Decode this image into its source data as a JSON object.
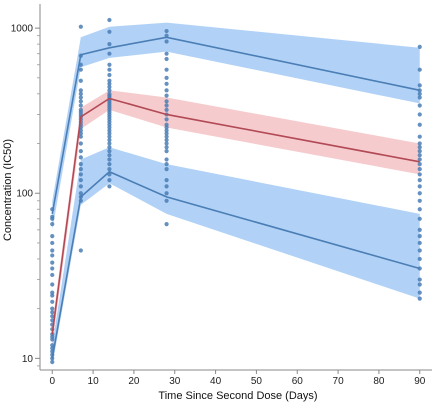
{
  "chart_data": {
    "type": "line",
    "title": "",
    "xlabel": "Time Since Second Dose (Days)",
    "ylabel": "Concentration (IC50)",
    "x_scale": "linear",
    "y_scale": "log",
    "xlim": [
      -3,
      93
    ],
    "ylim": [
      8.5,
      1400
    ],
    "x_ticks": [
      0,
      10,
      20,
      30,
      40,
      50,
      60,
      70,
      80,
      90
    ],
    "y_ticks": [
      10,
      100,
      1000
    ],
    "grid": false,
    "legend": "none",
    "series": [
      {
        "style": "upper",
        "color": "#4a7eb5",
        "band_color": "#a9cdf5",
        "x": [
          0,
          7,
          14,
          28,
          90
        ],
        "median": [
          75,
          690,
          760,
          880,
          420
        ],
        "band_lower": [
          60,
          580,
          660,
          720,
          350
        ],
        "band_upper": [
          90,
          880,
          1020,
          1080,
          760
        ]
      },
      {
        "style": "middle",
        "color": "#b24a55",
        "band_color": "#f4c2c5",
        "x": [
          0,
          7,
          14,
          28,
          90
        ],
        "median": [
          14,
          290,
          375,
          300,
          155
        ],
        "band_lower": [
          12,
          245,
          320,
          250,
          130
        ],
        "band_upper": [
          16,
          330,
          420,
          380,
          200
        ]
      },
      {
        "style": "lower",
        "color": "#4a7eb5",
        "band_color": "#a9cdf5",
        "x": [
          0,
          7,
          14,
          28,
          90
        ],
        "median": [
          10,
          95,
          135,
          95,
          35
        ],
        "band_lower": [
          9,
          85,
          115,
          75,
          23
        ],
        "band_upper": [
          12,
          160,
          190,
          150,
          75
        ]
      }
    ],
    "observations": [
      {
        "x": 0,
        "y": [
          80,
          72,
          70,
          65,
          55,
          50,
          42,
          38,
          32,
          28,
          25,
          22,
          20,
          18,
          17,
          16,
          15,
          14,
          13,
          12,
          11,
          10.5,
          10,
          9.5,
          11.5,
          13.5,
          19,
          24,
          35,
          45
        ]
      },
      {
        "x": 7,
        "y": [
          1020,
          680,
          600,
          560,
          480,
          420,
          400,
          380,
          360,
          340,
          320,
          310,
          300,
          290,
          280,
          270,
          260,
          250,
          240,
          230,
          220,
          200,
          180,
          165,
          150,
          140,
          130,
          120,
          110,
          100,
          95,
          90,
          45
        ]
      },
      {
        "x": 14,
        "y": [
          1120,
          950,
          800,
          700,
          600,
          560,
          520,
          480,
          460,
          440,
          420,
          400,
          390,
          380,
          370,
          360,
          350,
          340,
          330,
          320,
          310,
          300,
          290,
          280,
          270,
          260,
          250,
          240,
          230,
          220,
          210,
          200,
          190,
          180,
          170,
          160,
          150,
          140,
          130,
          120,
          110
        ]
      },
      {
        "x": 28,
        "y": [
          960,
          900,
          830,
          700,
          650,
          560,
          500,
          460,
          420,
          390,
          360,
          340,
          320,
          300,
          280,
          260,
          250,
          240,
          230,
          220,
          210,
          200,
          190,
          180,
          160,
          150,
          140,
          120,
          110,
          100,
          90,
          65
        ]
      },
      {
        "x": 90,
        "y": [
          770,
          560,
          450,
          420,
          400,
          380,
          340,
          300,
          260,
          220,
          200,
          190,
          180,
          170,
          160,
          150,
          140,
          130,
          120,
          110,
          100,
          90,
          80,
          70,
          60,
          55,
          50,
          45,
          40,
          35,
          30,
          28,
          25,
          23
        ]
      }
    ]
  }
}
